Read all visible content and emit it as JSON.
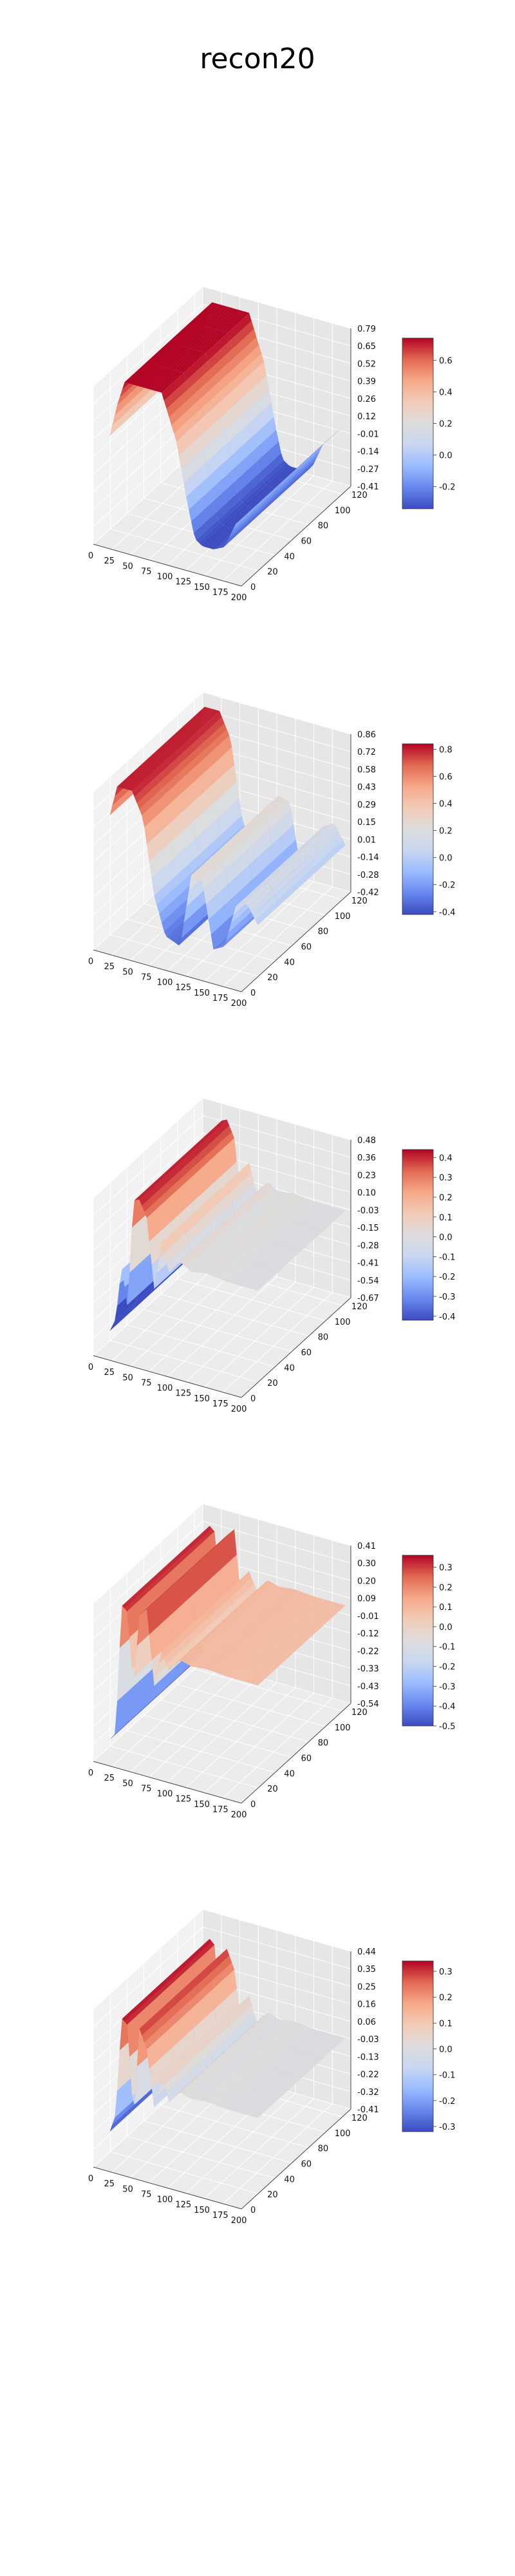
{
  "figure": {
    "title": "recon20"
  },
  "colormap": {
    "name": "coolwarm",
    "stops": [
      "#3b4cc0",
      "#6788ee",
      "#9abbff",
      "#c9d7f0",
      "#dddddd",
      "#f2cbb7",
      "#f7a889",
      "#e26952",
      "#b40426"
    ]
  },
  "chart_data": [
    {
      "type": "surface3d",
      "title": "",
      "x_ticks": [
        "0",
        "25",
        "50",
        "75",
        "100",
        "125",
        "150",
        "175",
        "200"
      ],
      "xlim": [
        0,
        200
      ],
      "y_ticks": [
        "0",
        "20",
        "40",
        "60",
        "80",
        "100",
        "120"
      ],
      "ylim": [
        0,
        130
      ],
      "z_ticks": [
        "0.79",
        "0.65",
        "0.52",
        "0.39",
        "0.26",
        "0.12",
        "-0.01",
        "-0.14",
        "-0.27",
        "-0.41"
      ],
      "zlim": [
        -0.41,
        0.79
      ],
      "colorbar": {
        "ticks": [
          "0.6",
          "0.4",
          "0.2",
          "0.0",
          "-0.2"
        ],
        "range": [
          -0.34,
          0.74
        ]
      },
      "profile": {
        "x": [
          0,
          10,
          20,
          35,
          50,
          70,
          90,
          105,
          115,
          125,
          140,
          155,
          170,
          185,
          200
        ],
        "z": [
          0.3,
          0.55,
          0.74,
          0.74,
          0.74,
          0.74,
          0.4,
          -0.05,
          -0.3,
          -0.34,
          -0.34,
          -0.3,
          -0.1,
          0.0,
          0.1
        ]
      }
    },
    {
      "type": "surface3d",
      "title": "",
      "x_ticks": [
        "0",
        "25",
        "50",
        "75",
        "100",
        "125",
        "150",
        "175",
        "200"
      ],
      "xlim": [
        0,
        200
      ],
      "y_ticks": [
        "0",
        "20",
        "40",
        "60",
        "80",
        "100",
        "120"
      ],
      "ylim": [
        0,
        130
      ],
      "z_ticks": [
        "0.86",
        "0.72",
        "0.58",
        "0.43",
        "0.29",
        "0.15",
        "0.01",
        "-0.14",
        "-0.28",
        "-0.42"
      ],
      "zlim": [
        -0.42,
        0.86
      ],
      "colorbar": {
        "ticks": [
          "0.8",
          "0.6",
          "0.4",
          "0.2",
          "0.0",
          "-0.2",
          "-0.4"
        ],
        "range": [
          -0.42,
          0.84
        ]
      },
      "profile": {
        "x": [
          0,
          10,
          20,
          30,
          45,
          60,
          75,
          95,
          110,
          125,
          140,
          155,
          170,
          185,
          200
        ],
        "z": [
          0.55,
          0.8,
          0.8,
          0.8,
          0.6,
          0.0,
          -0.3,
          -0.35,
          0.25,
          0.22,
          -0.3,
          -0.25,
          0.1,
          0.15,
          0.0
        ]
      }
    },
    {
      "type": "surface3d",
      "title": "",
      "x_ticks": [
        "0",
        "25",
        "50",
        "75",
        "100",
        "125",
        "150",
        "175",
        "200"
      ],
      "xlim": [
        0,
        200
      ],
      "y_ticks": [
        "0",
        "20",
        "40",
        "60",
        "80",
        "100",
        "120"
      ],
      "ylim": [
        0,
        130
      ],
      "z_ticks": [
        "0.48",
        "0.36",
        "0.23",
        "0.10",
        "-0.03",
        "-0.15",
        "-0.28",
        "-0.41",
        "-0.54",
        "-0.67"
      ],
      "zlim": [
        -0.67,
        0.48
      ],
      "colorbar": {
        "ticks": [
          "0.4",
          "0.3",
          "0.2",
          "0.1",
          "0.0",
          "-0.1",
          "-0.2",
          "-0.3",
          "-0.4"
        ],
        "range": [
          -0.42,
          0.44
        ]
      },
      "profile": {
        "x": [
          0,
          8,
          16,
          24,
          32,
          40,
          50,
          60,
          70,
          80,
          95,
          110,
          130,
          160,
          200
        ],
        "z": [
          -0.6,
          -0.5,
          -0.1,
          -0.4,
          0.4,
          0.42,
          0.3,
          -0.2,
          0.15,
          -0.05,
          0.05,
          0.0,
          0.02,
          0.0,
          0.0
        ]
      }
    },
    {
      "type": "surface3d",
      "title": "",
      "x_ticks": [
        "0",
        "25",
        "50",
        "75",
        "100",
        "125",
        "150",
        "175",
        "200"
      ],
      "xlim": [
        0,
        200
      ],
      "y_ticks": [
        "0",
        "20",
        "40",
        "60",
        "80",
        "100",
        "120"
      ],
      "ylim": [
        0,
        130
      ],
      "z_ticks": [
        "0.41",
        "0.30",
        "0.20",
        "0.09",
        "-0.01",
        "-0.12",
        "-0.22",
        "-0.33",
        "-0.43",
        "-0.54"
      ],
      "zlim": [
        -0.54,
        0.41
      ],
      "colorbar": {
        "ticks": [
          "0.3",
          "0.2",
          "0.1",
          "0.0",
          "-0.1",
          "-0.2",
          "-0.3",
          "-0.4",
          "-0.5"
        ],
        "range": [
          -0.5,
          0.36
        ]
      },
      "profile": {
        "x": [
          0,
          8,
          16,
          24,
          32,
          40,
          50,
          60,
          70,
          80,
          95,
          110,
          130,
          160,
          200
        ],
        "z": [
          -0.5,
          -0.45,
          0.33,
          0.3,
          -0.15,
          0.3,
          0.35,
          -0.1,
          0.12,
          0.02,
          0.1,
          0.08,
          0.09,
          0.08,
          0.08
        ]
      }
    },
    {
      "type": "surface3d",
      "title": "",
      "x_ticks": [
        "0",
        "25",
        "50",
        "75",
        "100",
        "125",
        "150",
        "175",
        "200"
      ],
      "xlim": [
        0,
        200
      ],
      "y_ticks": [
        "0",
        "20",
        "40",
        "60",
        "80",
        "100",
        "120"
      ],
      "ylim": [
        0,
        130
      ],
      "z_ticks": [
        "0.44",
        "0.35",
        "0.25",
        "0.16",
        "0.06",
        "-0.03",
        "-0.13",
        "-0.22",
        "-0.32",
        "-0.41"
      ],
      "zlim": [
        -0.41,
        0.44
      ],
      "colorbar": {
        "ticks": [
          "0.3",
          "0.2",
          "0.1",
          "0.0",
          "-0.1",
          "-0.2",
          "-0.3"
        ],
        "range": [
          -0.32,
          0.34
        ]
      },
      "profile": {
        "x": [
          0,
          8,
          16,
          24,
          32,
          40,
          50,
          60,
          70,
          80,
          95,
          110,
          130,
          160,
          200
        ],
        "z": [
          -0.3,
          -0.2,
          0.33,
          0.3,
          -0.2,
          0.3,
          0.2,
          -0.1,
          0.08,
          -0.05,
          0.02,
          0.0,
          0.01,
          0.0,
          0.0
        ]
      }
    }
  ]
}
